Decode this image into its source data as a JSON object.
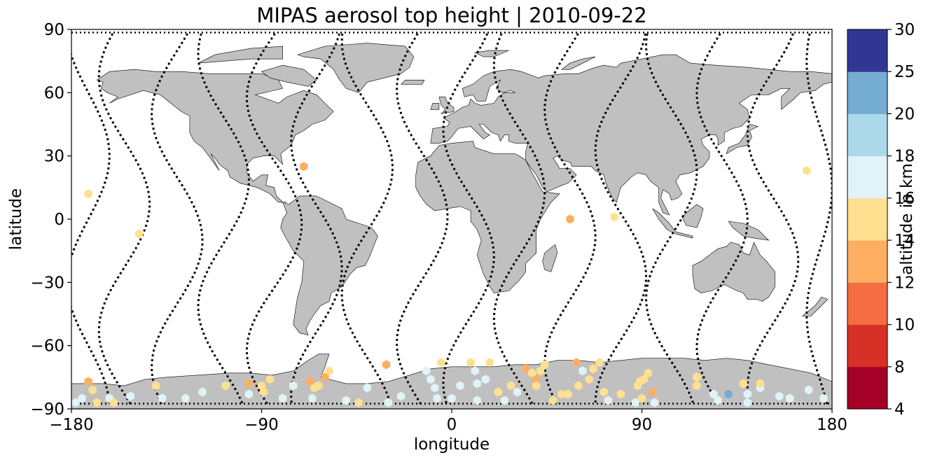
{
  "chart_data": {
    "type": "scatter",
    "title": "MIPAS aerosol top height | 2010-09-22",
    "xlabel": "longitude",
    "ylabel": "latitude",
    "xlim": [
      -180,
      180
    ],
    "ylim": [
      -90,
      90
    ],
    "xticks": [
      -180,
      -90,
      0,
      90,
      180
    ],
    "yticks": [
      90,
      60,
      30,
      0,
      -30,
      -60,
      -90
    ],
    "grid": false,
    "background": "world map (land in grey, coastlines in black)",
    "land_color": "#c0c0c0",
    "colorbar": {
      "label": "altitude in km",
      "boundaries": [
        4,
        8,
        10,
        12,
        14,
        16,
        18,
        20,
        25,
        30
      ],
      "colors": [
        "#a50026",
        "#d73027",
        "#f46d43",
        "#fdae61",
        "#fee090",
        "#e0f3f8",
        "#abd9e9",
        "#74add1",
        "#313695"
      ],
      "placement": "right"
    },
    "orbit_tracks": [
      {
        "lon0": -172,
        "amp": 10,
        "phase": 0.0
      },
      {
        "lon0": -155,
        "amp": 12,
        "phase": 1.2
      },
      {
        "lon0": -130,
        "amp": 12,
        "phase": 2.1
      },
      {
        "lon0": -108,
        "amp": 12,
        "phase": 0.6
      },
      {
        "lon0": -84,
        "amp": 13,
        "phase": 1.7
      },
      {
        "lon0": -64,
        "amp": 12,
        "phase": 2.8
      },
      {
        "lon0": -40,
        "amp": 12,
        "phase": 0.3
      },
      {
        "lon0": -14,
        "amp": 12,
        "phase": 1.5
      },
      {
        "lon0": 8,
        "amp": 12,
        "phase": 2.5
      },
      {
        "lon0": 32,
        "amp": 12,
        "phase": 0.9
      },
      {
        "lon0": 56,
        "amp": 12,
        "phase": 2.0
      },
      {
        "lon0": 80,
        "amp": 12,
        "phase": 3.0
      },
      {
        "lon0": 104,
        "amp": 12,
        "phase": 0.4
      },
      {
        "lon0": 128,
        "amp": 12,
        "phase": 1.6
      },
      {
        "lon0": 152,
        "amp": 12,
        "phase": 2.6
      },
      {
        "lon0": 174,
        "amp": 6,
        "phase": 0.8
      }
    ],
    "points": [
      {
        "lon": -172,
        "lat": 12,
        "alt": 15
      },
      {
        "lon": -148,
        "lat": -7,
        "alt": 15
      },
      {
        "lon": 77,
        "lat": 1,
        "alt": 15
      },
      {
        "lon": 168,
        "lat": 23,
        "alt": 15
      },
      {
        "lon": -70,
        "lat": 25,
        "alt": 13
      },
      {
        "lon": 56,
        "lat": 0,
        "alt": 13
      },
      {
        "lon": -172,
        "lat": -77,
        "alt": 13
      },
      {
        "lon": -170,
        "lat": -81,
        "alt": 15
      },
      {
        "lon": -175,
        "lat": -85,
        "alt": 17
      },
      {
        "lon": -168,
        "lat": -87,
        "alt": 15
      },
      {
        "lon": -178,
        "lat": -87,
        "alt": 17
      },
      {
        "lon": -162,
        "lat": -85,
        "alt": 17
      },
      {
        "lon": -160,
        "lat": -87,
        "alt": 15
      },
      {
        "lon": -152,
        "lat": -84,
        "alt": 17
      },
      {
        "lon": -140,
        "lat": -79,
        "alt": 15
      },
      {
        "lon": -137,
        "lat": -85,
        "alt": 17
      },
      {
        "lon": -126,
        "lat": -85,
        "alt": 17
      },
      {
        "lon": -118,
        "lat": -82,
        "alt": 17
      },
      {
        "lon": -107,
        "lat": -79,
        "alt": 15
      },
      {
        "lon": -96,
        "lat": -83,
        "alt": 17
      },
      {
        "lon": -96,
        "lat": -78,
        "alt": 13
      },
      {
        "lon": -90,
        "lat": -79,
        "alt": 15
      },
      {
        "lon": -89,
        "lat": -82,
        "alt": 15
      },
      {
        "lon": -86,
        "lat": -76,
        "alt": 15
      },
      {
        "lon": -80,
        "lat": -85,
        "alt": 17
      },
      {
        "lon": -75,
        "lat": -79,
        "alt": 17
      },
      {
        "lon": -67,
        "lat": -77,
        "alt": 13
      },
      {
        "lon": -65,
        "lat": -80,
        "alt": 15
      },
      {
        "lon": -63,
        "lat": -79,
        "alt": 15
      },
      {
        "lon": -60,
        "lat": -75,
        "alt": 13
      },
      {
        "lon": -58,
        "lat": -72,
        "alt": 15
      },
      {
        "lon": -66,
        "lat": -85,
        "alt": 17
      },
      {
        "lon": -50,
        "lat": -86,
        "alt": 17
      },
      {
        "lon": -44,
        "lat": -87,
        "alt": 15
      },
      {
        "lon": -40,
        "lat": -80,
        "alt": 17
      },
      {
        "lon": -31,
        "lat": -69,
        "alt": 13
      },
      {
        "lon": -30,
        "lat": -87,
        "alt": 17
      },
      {
        "lon": -24,
        "lat": -84,
        "alt": 17
      },
      {
        "lon": -12,
        "lat": -72,
        "alt": 17
      },
      {
        "lon": -10,
        "lat": -76,
        "alt": 17
      },
      {
        "lon": -8,
        "lat": -80,
        "alt": 17
      },
      {
        "lon": -7,
        "lat": -85,
        "alt": 17
      },
      {
        "lon": -5,
        "lat": -68,
        "alt": 15
      },
      {
        "lon": 0,
        "lat": -85,
        "alt": 17
      },
      {
        "lon": 4,
        "lat": -79,
        "alt": 17
      },
      {
        "lon": 9,
        "lat": -68,
        "alt": 15
      },
      {
        "lon": 11,
        "lat": -72,
        "alt": 17
      },
      {
        "lon": 12,
        "lat": -78,
        "alt": 17
      },
      {
        "lon": 12,
        "lat": -86,
        "alt": 17
      },
      {
        "lon": 16,
        "lat": -76,
        "alt": 17
      },
      {
        "lon": 18,
        "lat": -68,
        "alt": 15
      },
      {
        "lon": 22,
        "lat": -82,
        "alt": 15
      },
      {
        "lon": 25,
        "lat": -86,
        "alt": 17
      },
      {
        "lon": 28,
        "lat": -79,
        "alt": 15
      },
      {
        "lon": 31,
        "lat": -82,
        "alt": 17
      },
      {
        "lon": 35,
        "lat": -71,
        "alt": 13
      },
      {
        "lon": 38,
        "lat": -73,
        "alt": 15
      },
      {
        "lon": 40,
        "lat": -76,
        "alt": 13
      },
      {
        "lon": 40,
        "lat": -79,
        "alt": 15
      },
      {
        "lon": 42,
        "lat": -72,
        "alt": 15
      },
      {
        "lon": 44,
        "lat": -69,
        "alt": 15
      },
      {
        "lon": 48,
        "lat": -86,
        "alt": 15
      },
      {
        "lon": 52,
        "lat": -83,
        "alt": 15
      },
      {
        "lon": 55,
        "lat": -83,
        "alt": 15
      },
      {
        "lon": 59,
        "lat": -68,
        "alt": 13
      },
      {
        "lon": 60,
        "lat": -79,
        "alt": 15
      },
      {
        "lon": 62,
        "lat": -72,
        "alt": 17
      },
      {
        "lon": 65,
        "lat": -76,
        "alt": 15
      },
      {
        "lon": 67,
        "lat": -71,
        "alt": 15
      },
      {
        "lon": 70,
        "lat": -68,
        "alt": 15
      },
      {
        "lon": 72,
        "lat": -82,
        "alt": 15
      },
      {
        "lon": 74,
        "lat": -86,
        "alt": 17
      },
      {
        "lon": 80,
        "lat": -83,
        "alt": 15
      },
      {
        "lon": 87,
        "lat": -87,
        "alt": 17
      },
      {
        "lon": 88,
        "lat": -79,
        "alt": 15
      },
      {
        "lon": 89,
        "lat": -77,
        "alt": 15
      },
      {
        "lon": 90,
        "lat": -85,
        "alt": 15
      },
      {
        "lon": 91,
        "lat": -76,
        "alt": 15
      },
      {
        "lon": 93,
        "lat": -73,
        "alt": 15
      },
      {
        "lon": 95,
        "lat": -82,
        "alt": 13
      },
      {
        "lon": 96,
        "lat": -87,
        "alt": 17
      },
      {
        "lon": 116,
        "lat": -75,
        "alt": 15
      },
      {
        "lon": 116,
        "lat": -79,
        "alt": 15
      },
      {
        "lon": 124,
        "lat": -83,
        "alt": 17
      },
      {
        "lon": 126,
        "lat": -86,
        "alt": 17
      },
      {
        "lon": 131,
        "lat": -83,
        "alt": 20
      },
      {
        "lon": 138,
        "lat": -78,
        "alt": 15
      },
      {
        "lon": 140,
        "lat": -83,
        "alt": 17
      },
      {
        "lon": 140,
        "lat": -87,
        "alt": 17
      },
      {
        "lon": 146,
        "lat": -80,
        "alt": 17
      },
      {
        "lon": 146,
        "lat": -78,
        "alt": 15
      },
      {
        "lon": 155,
        "lat": -84,
        "alt": 17
      },
      {
        "lon": 160,
        "lat": -85,
        "alt": 17
      },
      {
        "lon": 169,
        "lat": -81,
        "alt": 17
      },
      {
        "lon": 176,
        "lat": -85,
        "alt": 17
      }
    ]
  }
}
